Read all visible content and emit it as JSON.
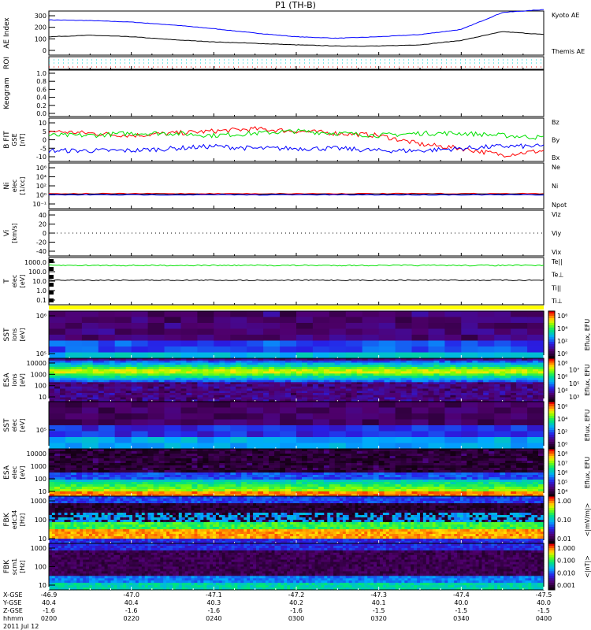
{
  "title": "P1 (TH-B)",
  "colors": {
    "red": "#ff0000",
    "green": "#00e000",
    "blue": "#0000ff",
    "black": "#000000",
    "cyan": "#00d0d0",
    "yellow": "#ffff00"
  },
  "chart_data": [
    {
      "type": "line",
      "panel": "ae",
      "ylabel": "AE Index",
      "ylim": [
        0,
        300
      ],
      "yticks": [
        "300",
        "200",
        "100",
        "0"
      ],
      "x_minutes": [
        0,
        10,
        20,
        30,
        40,
        50,
        60,
        70,
        80,
        90,
        100,
        110,
        120
      ],
      "series": [
        {
          "name": "Kyoto AE",
          "color": "#0000ff",
          "values": [
            240,
            235,
            225,
            205,
            180,
            150,
            125,
            115,
            125,
            140,
            175,
            290,
            310
          ]
        },
        {
          "name": "Themis AE",
          "color": "#000000",
          "values": [
            125,
            135,
            125,
            105,
            90,
            80,
            70,
            62,
            62,
            70,
            100,
            160,
            140
          ]
        }
      ]
    },
    {
      "type": "line",
      "panel": "roi",
      "ylabel": "ROI"
    },
    {
      "type": "line",
      "panel": "keogram",
      "ylabel": "Keogram",
      "ylim": [
        0,
        1
      ],
      "yticks": [
        "1.0",
        "0.8",
        "0.6",
        "0.4",
        "0.2",
        "0.0"
      ]
    },
    {
      "type": "line",
      "panel": "bfit",
      "ylabel": "B FIT",
      "ylabel2": "GSE",
      "ylabel3": "[nT]",
      "ylim": [
        -10,
        10
      ],
      "yticks": [
        "10",
        "5",
        "0",
        "-5",
        "-10"
      ],
      "x_minutes": [
        0,
        10,
        20,
        30,
        40,
        50,
        60,
        70,
        80,
        90,
        100,
        110,
        120
      ],
      "series": [
        {
          "name": "Bz",
          "color": "#ff0000",
          "values": [
            4,
            3,
            2,
            3,
            4,
            5,
            4,
            3,
            2,
            -2,
            -4,
            -7,
            -5
          ]
        },
        {
          "name": "By",
          "color": "#00e000",
          "values": [
            2,
            2,
            3,
            3,
            2,
            3,
            4,
            3,
            2,
            3,
            3,
            2,
            1
          ]
        },
        {
          "name": "Bx",
          "color": "#0000ff",
          "values": [
            -5,
            -5,
            -5,
            -4,
            -3,
            -4,
            -4,
            -4,
            -5,
            -5,
            -4,
            -3,
            -3
          ]
        }
      ]
    },
    {
      "type": "line",
      "panel": "ni",
      "ylabel": "Ni",
      "ylabel2": "elec",
      "ylabel3": "[1/cc]",
      "yscale": "log",
      "yticks": [
        "10⁶",
        "10⁴",
        "10²",
        "10⁰",
        "10⁻¹"
      ],
      "series": [
        {
          "name": "Ne",
          "color": "#ff0000"
        },
        {
          "name": "Ni",
          "color": "#000000"
        },
        {
          "name": "Npot",
          "color": "#0000ff"
        }
      ]
    },
    {
      "type": "line",
      "panel": "vi",
      "ylabel": "Vi",
      "ylabel2": "[km/s]",
      "ylim": [
        -50,
        50
      ],
      "yticks": [
        "40",
        "20",
        "0",
        "-20",
        "-40"
      ],
      "series": [
        {
          "name": "Viz",
          "color": "#ff0000"
        },
        {
          "name": "Viy",
          "color": "#00e000"
        },
        {
          "name": "Vix",
          "color": "#0000ff"
        }
      ]
    },
    {
      "type": "line",
      "panel": "t",
      "ylabel": "T",
      "ylabel2": "elec",
      "ylabel3": "[eV]",
      "yscale": "log",
      "yticks": [
        "1000.0",
        "100.0",
        "10.0",
        "1.0",
        "0.1"
      ],
      "series": [
        {
          "name": "Te||",
          "color": "#000000"
        },
        {
          "name": "Te⊥",
          "color": "#ff0000"
        },
        {
          "name": "Ti||",
          "color": "#00e000"
        },
        {
          "name": "Ti⊥",
          "color": "#0000ff"
        }
      ]
    },
    {
      "type": "heatmap",
      "panel": "sst_i",
      "ylabel": "SST",
      "ylabel2": "ions",
      "ylabel3": "[eV]",
      "yticks": [
        "10⁶",
        "10⁵"
      ],
      "cbar_ticks": [
        "10⁶",
        "10⁴",
        "10²",
        "10⁰"
      ],
      "cbar_label": "Eflux, EFU"
    },
    {
      "type": "heatmap",
      "panel": "esa_i",
      "ylabel": "ESA",
      "ylabel2": "ions",
      "ylabel3": "[eV]",
      "yticks": [
        "10000",
        "1000",
        "100",
        "10"
      ],
      "cbar_ticks": [
        "10⁸",
        "10⁷",
        "10⁶",
        "10⁵",
        "10⁴",
        "10³"
      ],
      "cbar_label": "Eflux, EFU"
    },
    {
      "type": "heatmap",
      "panel": "sst_e",
      "ylabel": "SST",
      "ylabel2": "elec",
      "ylabel3": "[eV]",
      "yticks": [
        "10⁵"
      ],
      "cbar_ticks": [
        "10⁶",
        "10⁴",
        "10²",
        "10⁰"
      ],
      "cbar_label": "Eflux, EFU"
    },
    {
      "type": "heatmap",
      "panel": "esa_e",
      "ylabel": "ESA",
      "ylabel2": "elec",
      "ylabel3": "[eV]",
      "yticks": [
        "10000",
        "1000",
        "100",
        "10"
      ],
      "cbar_ticks": [
        "10⁸",
        "10⁷",
        "10⁶",
        "10⁵",
        "10⁴"
      ],
      "cbar_label": "Eflux, EFU"
    },
    {
      "type": "heatmap",
      "panel": "fbk_e",
      "ylabel": "FBK",
      "ylabel2": "edc34",
      "ylabel3": "[Hz]",
      "yticks": [
        "1000",
        "100",
        "10"
      ],
      "cbar_ticks": [
        "1.00",
        "0.10",
        "0.01"
      ],
      "cbar_label": "<|mV/m|>"
    },
    {
      "type": "heatmap",
      "panel": "fbk_b",
      "ylabel": "FBK",
      "ylabel2": "scm1",
      "ylabel3": "[Hz]",
      "yticks": [
        "1000",
        "100",
        "10"
      ],
      "cbar_ticks": [
        "1.000",
        "0.100",
        "0.010",
        "0.001"
      ],
      "cbar_label": "<|nT|>"
    }
  ],
  "xaxis": {
    "row_labels": [
      "X-GSE",
      "Y-GSE",
      "Z-GSE",
      "hhmm"
    ],
    "date": "2011 Jul 12",
    "ticks": [
      {
        "x": "-46.9",
        "y": "40.4",
        "z": "-1.6",
        "t": "0200"
      },
      {
        "x": "-47.0",
        "y": "40.4",
        "z": "-1.6",
        "t": "0220"
      },
      {
        "x": "-47.1",
        "y": "40.3",
        "z": "-1.6",
        "t": "0240"
      },
      {
        "x": "-47.2",
        "y": "40.2",
        "z": "-1.6",
        "t": "0300"
      },
      {
        "x": "-47.3",
        "y": "40.1",
        "z": "-1.5",
        "t": "0320"
      },
      {
        "x": "-47.4",
        "y": "40.0",
        "z": "-1.5",
        "t": "0340"
      },
      {
        "x": "-47.5",
        "y": "40.0",
        "z": "-1.5",
        "t": "0400"
      }
    ]
  }
}
